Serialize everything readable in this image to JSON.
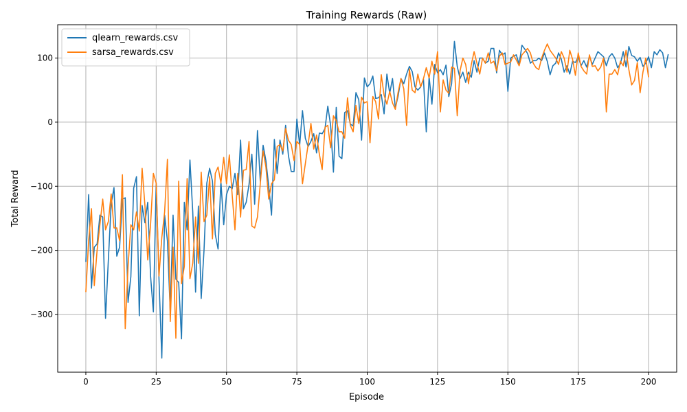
{
  "chart_data": {
    "type": "line",
    "title": "Training Rewards (Raw)",
    "xlabel": "Episode",
    "ylabel": "Total Reward",
    "xlim": [
      -10,
      210
    ],
    "ylim": [
      -390,
      152
    ],
    "xticks": [
      0,
      25,
      50,
      75,
      100,
      125,
      150,
      175,
      200
    ],
    "yticks": [
      -300,
      -200,
      -100,
      0,
      100
    ],
    "grid": true,
    "legend_position": "top-left",
    "series": [
      {
        "name": "qlearn_rewards.csv",
        "color": "#1f77b4",
        "values": [
          -218,
          -113,
          -259,
          -195,
          -190,
          -145,
          -148,
          -306,
          -215,
          -128,
          -102,
          -209,
          -195,
          -120,
          -118,
          -281,
          -241,
          -103,
          -85,
          -302,
          -130,
          -157,
          -125,
          -240,
          -296,
          -95,
          -245,
          -368,
          -145,
          -185,
          -295,
          -145,
          -245,
          -250,
          -338,
          -125,
          -168,
          -59,
          -140,
          -265,
          -131,
          -275,
          -200,
          -95,
          -72,
          -92,
          -175,
          -198,
          -92,
          -160,
          -113,
          -100,
          -104,
          -80,
          -113,
          -28,
          -135,
          -125,
          -97,
          -50,
          -128,
          -13,
          -92,
          -36,
          -60,
          -100,
          -145,
          -27,
          -80,
          -28,
          -50,
          -5,
          -52,
          -77,
          -77,
          5,
          -36,
          18,
          -25,
          -38,
          -30,
          -18,
          -48,
          -17,
          -18,
          -10,
          25,
          -5,
          -78,
          23,
          -53,
          -57,
          15,
          18,
          -3,
          -6,
          46,
          35,
          -28,
          69,
          55,
          60,
          72,
          37,
          38,
          43,
          13,
          75,
          45,
          68,
          22,
          41,
          68,
          60,
          75,
          87,
          79,
          55,
          50,
          55,
          67,
          -15,
          71,
          28,
          90,
          77,
          82,
          74,
          89,
          40,
          60,
          126,
          87,
          68,
          78,
          62,
          78,
          70,
          96,
          78,
          100,
          100,
          92,
          95,
          115,
          115,
          77,
          112,
          105,
          108,
          48,
          100,
          103,
          105,
          90,
          120,
          114,
          107,
          92,
          96,
          96,
          100,
          96,
          108,
          95,
          74,
          88,
          92,
          108,
          98,
          78,
          88,
          75,
          95,
          93,
          102,
          88,
          96,
          86,
          103,
          90,
          100,
          110,
          106,
          102,
          88,
          102,
          107,
          100,
          85,
          91,
          110,
          86,
          118,
          104,
          102,
          95,
          101,
          87,
          92,
          102,
          85,
          110,
          105,
          113,
          108,
          85,
          106
        ]
      },
      {
        "name": "sarsa_rewards.csv",
        "color": "#ff7f0e",
        "values": [
          -265,
          -185,
          -135,
          -255,
          -200,
          -160,
          -120,
          -168,
          -155,
          -112,
          -165,
          -165,
          -185,
          -82,
          -322,
          -225,
          -160,
          -168,
          -140,
          -170,
          -72,
          -130,
          -215,
          -160,
          -80,
          -95,
          -240,
          -180,
          -140,
          -58,
          -311,
          -195,
          -337,
          -92,
          -252,
          -225,
          -88,
          -244,
          -220,
          -148,
          -220,
          -78,
          -155,
          -145,
          -85,
          -182,
          -80,
          -70,
          -95,
          -55,
          -96,
          -51,
          -113,
          -168,
          -80,
          -148,
          -75,
          -74,
          -30,
          -162,
          -165,
          -148,
          -96,
          -45,
          -70,
          -120,
          -96,
          -90,
          -38,
          -35,
          -45,
          -10,
          -28,
          -35,
          -60,
          -30,
          -35,
          -96,
          -65,
          -35,
          -2,
          -42,
          -20,
          -50,
          -74,
          -8,
          -5,
          -40,
          10,
          2,
          -15,
          -15,
          -25,
          38,
          -5,
          -15,
          26,
          -2,
          39,
          30,
          32,
          -32,
          40,
          32,
          5,
          74,
          42,
          28,
          48,
          30,
          20,
          47,
          68,
          52,
          -5,
          83,
          50,
          46,
          75,
          55,
          68,
          85,
          69,
          95,
          75,
          110,
          16,
          66,
          50,
          45,
          86,
          84,
          10,
          80,
          100,
          90,
          60,
          90,
          110,
          92,
          75,
          100,
          92,
          108,
          92,
          95,
          80,
          103,
          108,
          90,
          92,
          94,
          105,
          97,
          88,
          105,
          110,
          115,
          108,
          92,
          85,
          82,
          100,
          112,
          122,
          112,
          106,
          100,
          90,
          110,
          100,
          78,
          112,
          98,
          73,
          108,
          87,
          80,
          75,
          105,
          87,
          88,
          80,
          86,
          100,
          16,
          75,
          75,
          82,
          74,
          95,
          88,
          112,
          82,
          58,
          65,
          93,
          46,
          78,
          100,
          70
        ]
      }
    ]
  }
}
